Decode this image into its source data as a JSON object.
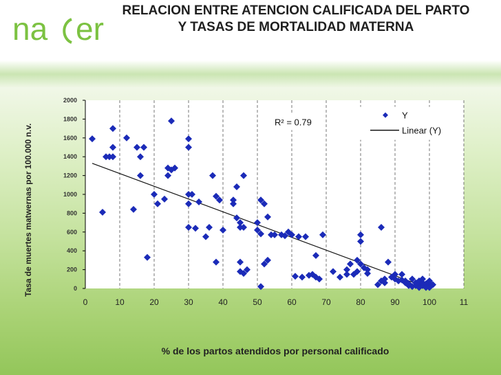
{
  "logo": {
    "text": "na(er",
    "icon": "nacer-logo"
  },
  "title": "RELACION ENTRE ATENCION CALIFICADA DEL PARTO Y TASAS DE MORTALIDAD MATERNA",
  "colors": {
    "marker": "#1b2bb8",
    "line": "#111111",
    "brand_green": "#8cc63f",
    "plot_bg": "#ffffff"
  },
  "chart_data": {
    "type": "scatter",
    "title": "RELACION ENTRE ATENCION CALIFICADA DEL PARTO Y TASAS DE MORTALIDAD MATERNA",
    "xlabel": "% de los partos atendidos por personal calificado",
    "ylabel": "Tasa de muertes matwernas por 100.000  n.v.",
    "xlim": [
      0,
      110
    ],
    "ylim": [
      0,
      2000
    ],
    "x_ticks": [
      "0",
      "10",
      "20",
      "30",
      "40",
      "50",
      "60",
      "70",
      "80",
      "90",
      "100",
      "11"
    ],
    "y_ticks": [
      "0",
      "200",
      "400",
      "600",
      "800",
      "1000",
      "1200",
      "1400",
      "1600",
      "1800",
      "2000"
    ],
    "grid": "vertical dashed",
    "legend": {
      "position": "top-right",
      "entries": [
        "Y",
        "Linear (Y)"
      ]
    },
    "annotation": "R² = 0.79",
    "series": [
      {
        "name": "Y",
        "points": [
          [
            2,
            1590
          ],
          [
            5,
            810
          ],
          [
            6,
            1400
          ],
          [
            7,
            1400
          ],
          [
            8,
            1700
          ],
          [
            8,
            1500
          ],
          [
            8,
            1400
          ],
          [
            12,
            1600
          ],
          [
            14,
            840
          ],
          [
            15,
            1500
          ],
          [
            16,
            1400
          ],
          [
            16,
            1200
          ],
          [
            17,
            1500
          ],
          [
            18,
            330
          ],
          [
            20,
            1000
          ],
          [
            21,
            900
          ],
          [
            23,
            950
          ],
          [
            24,
            1200
          ],
          [
            24,
            1280
          ],
          [
            25,
            1780
          ],
          [
            25,
            1260
          ],
          [
            26,
            1280
          ],
          [
            30,
            1500
          ],
          [
            30,
            1590
          ],
          [
            30,
            1000
          ],
          [
            30,
            900
          ],
          [
            30,
            650
          ],
          [
            31,
            1000
          ],
          [
            32,
            640
          ],
          [
            33,
            920
          ],
          [
            35,
            550
          ],
          [
            36,
            650
          ],
          [
            37,
            1200
          ],
          [
            38,
            980
          ],
          [
            38,
            280
          ],
          [
            39,
            940
          ],
          [
            40,
            620
          ],
          [
            43,
            940
          ],
          [
            43,
            900
          ],
          [
            44,
            1080
          ],
          [
            44,
            750
          ],
          [
            45,
            280
          ],
          [
            45,
            180
          ],
          [
            45,
            700
          ],
          [
            45,
            650
          ],
          [
            46,
            650
          ],
          [
            46,
            160
          ],
          [
            46,
            1200
          ],
          [
            47,
            200
          ],
          [
            50,
            700
          ],
          [
            50,
            620
          ],
          [
            51,
            940
          ],
          [
            51,
            580
          ],
          [
            51,
            20
          ],
          [
            52,
            900
          ],
          [
            52,
            260
          ],
          [
            53,
            300
          ],
          [
            53,
            760
          ],
          [
            54,
            570
          ],
          [
            55,
            570
          ],
          [
            57,
            570
          ],
          [
            58,
            560
          ],
          [
            59,
            600
          ],
          [
            60,
            570
          ],
          [
            61,
            130
          ],
          [
            62,
            550
          ],
          [
            63,
            120
          ],
          [
            64,
            550
          ],
          [
            65,
            140
          ],
          [
            66,
            150
          ],
          [
            67,
            120
          ],
          [
            67,
            350
          ],
          [
            68,
            100
          ],
          [
            69,
            570
          ],
          [
            72,
            180
          ],
          [
            74,
            120
          ],
          [
            76,
            200
          ],
          [
            76,
            150
          ],
          [
            77,
            260
          ],
          [
            78,
            150
          ],
          [
            79,
            180
          ],
          [
            79,
            300
          ],
          [
            80,
            570
          ],
          [
            80,
            500
          ],
          [
            80,
            260
          ],
          [
            81,
            220
          ],
          [
            82,
            200
          ],
          [
            82,
            160
          ],
          [
            85,
            40
          ],
          [
            86,
            80
          ],
          [
            86,
            650
          ],
          [
            87,
            60
          ],
          [
            87,
            100
          ],
          [
            88,
            280
          ],
          [
            89,
            120
          ],
          [
            90,
            150
          ],
          [
            90,
            100
          ],
          [
            91,
            80
          ],
          [
            92,
            90
          ],
          [
            92,
            150
          ],
          [
            93,
            60
          ],
          [
            93,
            80
          ],
          [
            94,
            30
          ],
          [
            94,
            50
          ],
          [
            95,
            100
          ],
          [
            95,
            20
          ],
          [
            96,
            60
          ],
          [
            96,
            30
          ],
          [
            97,
            40
          ],
          [
            97,
            80
          ],
          [
            97,
            10
          ],
          [
            98,
            30
          ],
          [
            98,
            60
          ],
          [
            98,
            100
          ],
          [
            99,
            20
          ],
          [
            99,
            50
          ],
          [
            99,
            10
          ],
          [
            100,
            30
          ],
          [
            100,
            60
          ],
          [
            100,
            80
          ],
          [
            100,
            10
          ],
          [
            101,
            40
          ]
        ]
      },
      {
        "name": "Linear (Y)",
        "type": "line",
        "points": [
          [
            2,
            1330
          ],
          [
            100,
            0
          ]
        ]
      }
    ]
  }
}
